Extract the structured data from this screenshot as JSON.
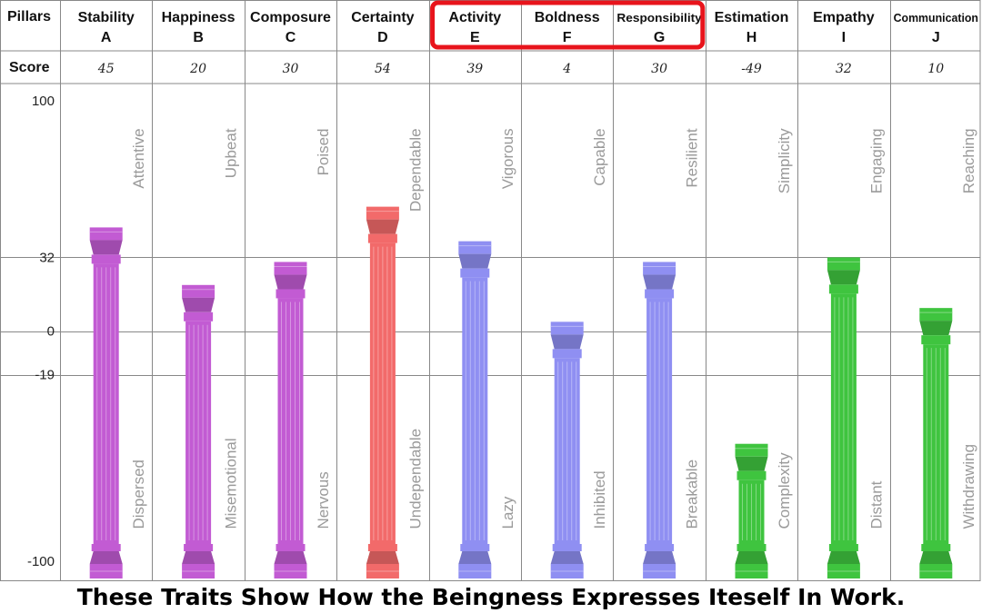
{
  "header": {
    "row_label": "Pillars",
    "score_label": "Score"
  },
  "footer": {
    "text": "These Traits Show How the Beingness Expresses Iteself In Work."
  },
  "highlight_color": "#e8141c",
  "chart_data": {
    "type": "bar",
    "ylim": [
      -100,
      100
    ],
    "y_ticks": [
      100,
      32,
      0,
      -19,
      -100
    ],
    "grid": true,
    "pillars": [
      {
        "name": "Stability",
        "letter": "A",
        "score": "45",
        "value": 45,
        "top_trait": "Attentive",
        "bottom_trait": "Dispersed",
        "color": "#c25bd3"
      },
      {
        "name": "Happiness",
        "letter": "B",
        "score": "20",
        "value": 20,
        "top_trait": "Upbeat",
        "bottom_trait": "Misemotional",
        "color": "#c25bd3"
      },
      {
        "name": "Composure",
        "letter": "C",
        "score": "30",
        "value": 30,
        "top_trait": "Poised",
        "bottom_trait": "Nervous",
        "color": "#c25bd3"
      },
      {
        "name": "Certainty",
        "letter": "D",
        "score": "54",
        "value": 54,
        "top_trait": "Dependable",
        "bottom_trait": "Undependable",
        "color": "#f26a6a"
      },
      {
        "name": "Activity",
        "letter": "E",
        "score": "39",
        "value": 39,
        "top_trait": "Vigorous",
        "bottom_trait": "Lazy",
        "color": "#8f8ff2"
      },
      {
        "name": "Boldness",
        "letter": "F",
        "score": "4",
        "value": 4,
        "top_trait": "Capable",
        "bottom_trait": "Inhibited",
        "color": "#8f8ff2"
      },
      {
        "name": "Responsibility",
        "letter": "G",
        "score": "30",
        "value": 30,
        "top_trait": "Resilient",
        "bottom_trait": "Breakable",
        "color": "#8f8ff2"
      },
      {
        "name": "Estimation",
        "letter": "H",
        "score": "-49",
        "value": -49,
        "top_trait": "Simplicity",
        "bottom_trait": "Complexity",
        "color": "#3fc43f"
      },
      {
        "name": "Empathy",
        "letter": "I",
        "score": "32",
        "value": 32,
        "top_trait": "Engaging",
        "bottom_trait": "Distant",
        "color": "#3fc43f"
      },
      {
        "name": "Communication",
        "letter": "J",
        "score": "10",
        "value": 10,
        "top_trait": "Reaching",
        "bottom_trait": "Withdrawing",
        "color": "#3fc43f"
      }
    ],
    "highlighted_letters": [
      "E",
      "F",
      "G"
    ]
  }
}
